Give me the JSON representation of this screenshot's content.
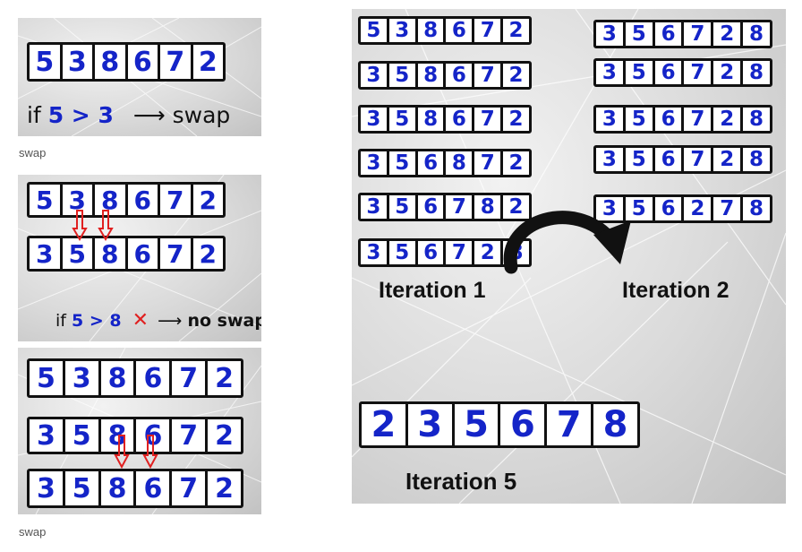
{
  "panel1": {
    "array": [
      "5",
      "3",
      "8",
      "6",
      "7",
      "2"
    ],
    "cond_if": "if",
    "cond_expr": "5 > 3",
    "cond_arrow": "⟶",
    "cond_result": "swap",
    "caption": "swap"
  },
  "panel2": {
    "array_top": [
      "5",
      "3",
      "8",
      "6",
      "7",
      "2"
    ],
    "array_bottom": [
      "3",
      "5",
      "8",
      "6",
      "7",
      "2"
    ],
    "cond_if": "if",
    "cond_expr": "5 > 8",
    "cross": "✕",
    "cond_arrow": "⟶",
    "cond_result": "no swap"
  },
  "panel3": {
    "array_a": [
      "5",
      "3",
      "8",
      "6",
      "7",
      "2"
    ],
    "array_b": [
      "3",
      "5",
      "8",
      "6",
      "7",
      "2"
    ],
    "array_c": [
      "3",
      "5",
      "8",
      "6",
      "7",
      "2"
    ],
    "caption": "swap"
  },
  "panel4": {
    "iteration1": [
      [
        "5",
        "3",
        "8",
        "6",
        "7",
        "2"
      ],
      [
        "3",
        "5",
        "8",
        "6",
        "7",
        "2"
      ],
      [
        "3",
        "5",
        "8",
        "6",
        "7",
        "2"
      ],
      [
        "3",
        "5",
        "6",
        "8",
        "7",
        "2"
      ],
      [
        "3",
        "5",
        "6",
        "7",
        "8",
        "2"
      ],
      [
        "3",
        "5",
        "6",
        "7",
        "2",
        "8"
      ]
    ],
    "iteration2": [
      [
        "3",
        "5",
        "6",
        "7",
        "2",
        "8"
      ],
      [
        "3",
        "5",
        "6",
        "7",
        "2",
        "8"
      ],
      [
        "3",
        "5",
        "6",
        "7",
        "2",
        "8"
      ],
      [
        "3",
        "5",
        "6",
        "7",
        "2",
        "8"
      ],
      [
        "3",
        "5",
        "6",
        "2",
        "7",
        "8"
      ]
    ],
    "iteration5": [
      "2",
      "3",
      "5",
      "6",
      "7",
      "8"
    ],
    "label1": "Iteration 1",
    "label2": "Iteration 2",
    "label5": "Iteration 5"
  },
  "colors": {
    "digit": "#1424c8",
    "border": "#111111",
    "arrow_red": "#e02020"
  }
}
